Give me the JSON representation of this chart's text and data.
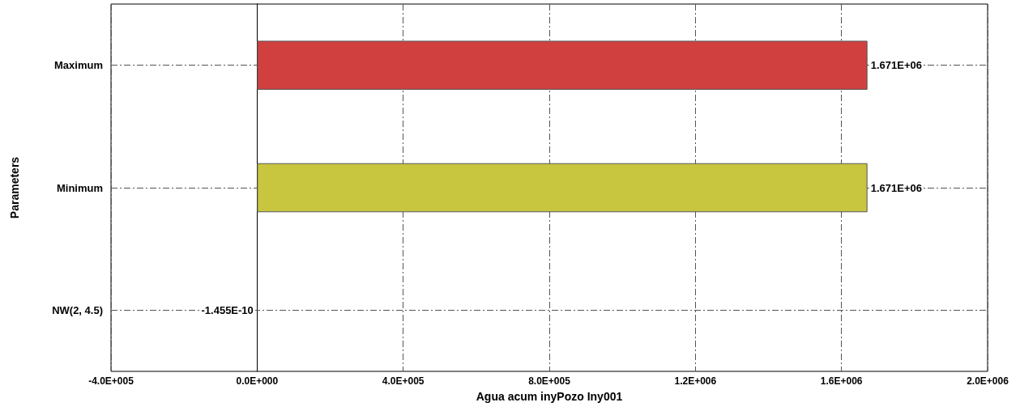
{
  "chart_data": {
    "type": "bar",
    "orientation": "horizontal",
    "xlabel": "Agua acum inyPozo Iny001",
    "ylabel": "Parameters",
    "categories": [
      "Maximum",
      "Minimum",
      "NW(2, 4.5)"
    ],
    "values": [
      1671000,
      1671000,
      -1.455e-10
    ],
    "value_labels": [
      "1.671E+06",
      "1.671E+06",
      "-1.455E-10"
    ],
    "colors": [
      "#d0403f",
      "#c8c63e",
      null
    ],
    "xlim": [
      -400000,
      2000000
    ],
    "xticks": [
      {
        "value": -400000,
        "label": "-4.0E+005"
      },
      {
        "value": 0,
        "label": "0.0E+000"
      },
      {
        "value": 400000,
        "label": "4.0E+005"
      },
      {
        "value": 800000,
        "label": "8.0E+005"
      },
      {
        "value": 1200000,
        "label": "1.2E+006"
      },
      {
        "value": 1600000,
        "label": "1.6E+006"
      },
      {
        "value": 2000000,
        "label": "2.0E+006"
      }
    ],
    "grid": true
  }
}
